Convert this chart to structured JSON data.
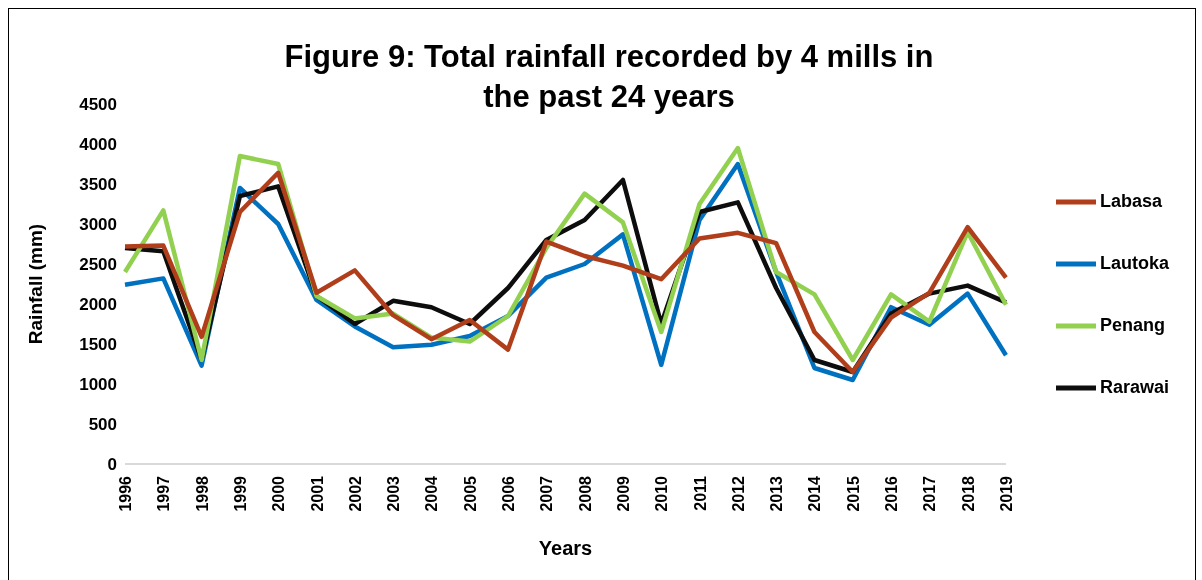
{
  "chart_data": {
    "type": "line",
    "title": "Figure 9: Total rainfall recorded by 4 mills in the past 24 years",
    "xlabel": "Years",
    "ylabel": "Rainfall (mm)",
    "categories": [
      "1996",
      "1997",
      "1998",
      "1999",
      "2000",
      "2001",
      "2002",
      "2003",
      "2004",
      "2005",
      "2006",
      "2007",
      "2008",
      "2009",
      "2010",
      "2011",
      "2012",
      "2013",
      "2014",
      "2015",
      "2016",
      "2017",
      "2018",
      "2019"
    ],
    "series": [
      {
        "name": "Lautoka",
        "color": "#0070c0",
        "values": [
          2240,
          2320,
          1230,
          3450,
          3000,
          2050,
          1720,
          1460,
          1490,
          1600,
          1850,
          2330,
          2500,
          2870,
          1240,
          3050,
          3750,
          2400,
          1200,
          1050,
          1960,
          1740,
          2130,
          1360
        ]
      },
      {
        "name": "Rarawai",
        "color": "#0d0d0d",
        "values": [
          2700,
          2660,
          1300,
          3350,
          3470,
          2100,
          1750,
          2040,
          1960,
          1750,
          2200,
          2800,
          3050,
          3550,
          1750,
          3150,
          3270,
          2200,
          1300,
          1150,
          1880,
          2130,
          2230,
          2020
        ]
      },
      {
        "name": "Penang",
        "color": "#92d050",
        "values": [
          2400,
          3170,
          1300,
          3850,
          3750,
          2100,
          1820,
          1880,
          1580,
          1530,
          1850,
          2700,
          3380,
          3020,
          1650,
          3250,
          3950,
          2400,
          2120,
          1300,
          2120,
          1780,
          2900,
          1990
        ]
      },
      {
        "name": "Labasa",
        "color": "#b03e1a",
        "values": [
          2720,
          2730,
          1590,
          3150,
          3640,
          2140,
          2420,
          1860,
          1560,
          1800,
          1430,
          2780,
          2600,
          2480,
          2310,
          2820,
          2890,
          2760,
          1650,
          1150,
          1830,
          2140,
          2960,
          2330
        ]
      }
    ],
    "ylim": [
      0,
      4500
    ],
    "yticks": [
      0,
      500,
      1000,
      1500,
      2000,
      2500,
      3000,
      3500,
      4000,
      4500
    ],
    "grid": false,
    "legend": "right",
    "marker": "none",
    "line_style": "solid"
  }
}
